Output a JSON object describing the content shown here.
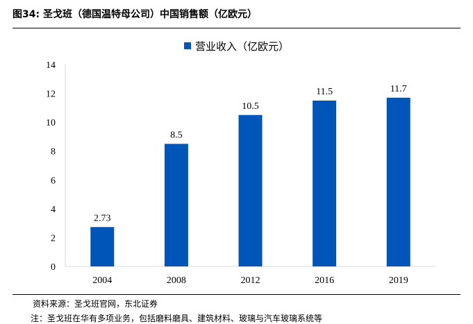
{
  "figure": {
    "title": "图34:  圣戈班（德国温特母公司）中国销售额（亿欧元）",
    "source": "资料来源：圣戈班官网，东北证券",
    "note": "注：圣戈班在华有多项业务，包括磨料磨具、建筑材料、玻璃与汽车玻璃系统等"
  },
  "chart_data": {
    "type": "bar",
    "categories": [
      "2004",
      "2008",
      "2012",
      "2016",
      "2019"
    ],
    "series": [
      {
        "name": "营业收入（亿欧元）",
        "values": [
          2.73,
          8.5,
          10.5,
          11.5,
          11.7
        ],
        "labels": [
          "2.73",
          "8.5",
          "10.5",
          "11.5",
          "11.7"
        ]
      }
    ],
    "ylim": [
      0,
      14
    ],
    "yticks": [
      "0",
      "2",
      "4",
      "6",
      "8",
      "10",
      "12",
      "14"
    ],
    "grid": false,
    "legend": "top-center",
    "bar_color": "#0055b8",
    "axis_color": "#d9d9d9"
  }
}
